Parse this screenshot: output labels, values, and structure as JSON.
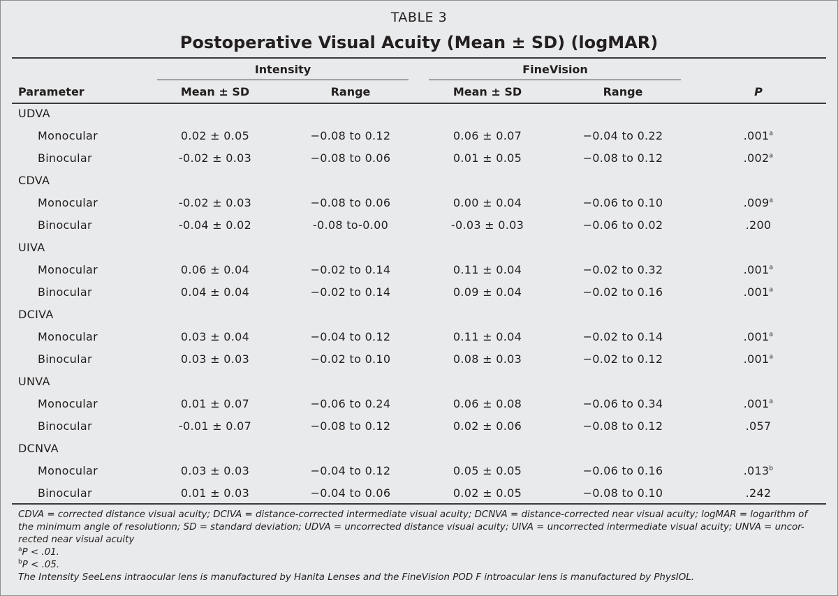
{
  "table": {
    "label": "TABLE 3",
    "title": "Postoperative Visual Acuity (Mean ± SD) (logMAR)",
    "group_headers": {
      "intensity": "Intensity",
      "finevision": "FineVision"
    },
    "column_headers": {
      "parameter": "Parameter",
      "intensity_mean": "Mean ± SD",
      "intensity_range": "Range",
      "finevision_mean": "Mean ± SD",
      "finevision_range": "Range",
      "p": "P"
    },
    "rows": [
      {
        "type": "section",
        "label": "UDVA"
      },
      {
        "type": "data",
        "label": "Monocular",
        "i_mean": "0.02 ± 0.05",
        "i_range": "−0.08 to 0.12",
        "f_mean": "0.06 ± 0.07",
        "f_range": "−0.04 to 0.22",
        "p": ".001",
        "p_sup": "a"
      },
      {
        "type": "data",
        "label": "Binocular",
        "i_mean": "-0.02 ± 0.03",
        "i_range": "−0.08 to 0.06",
        "f_mean": "0.01 ± 0.05",
        "f_range": "−0.08 to 0.12",
        "p": ".002",
        "p_sup": "a"
      },
      {
        "type": "section",
        "label": "CDVA"
      },
      {
        "type": "data",
        "label": "Monocular",
        "i_mean": "-0.02 ± 0.03",
        "i_range": "−0.08 to 0.06",
        "f_mean": "0.00 ± 0.04",
        "f_range": "−0.06 to 0.10",
        "p": ".009",
        "p_sup": "a"
      },
      {
        "type": "data",
        "label": "Binocular",
        "i_mean": "-0.04 ± 0.02",
        "i_range": "-0.08 to-0.00",
        "f_mean": "-0.03 ± 0.03",
        "f_range": "−0.06 to 0.02",
        "p": ".200",
        "p_sup": ""
      },
      {
        "type": "section",
        "label": "UIVA"
      },
      {
        "type": "data",
        "label": "Monocular",
        "i_mean": "0.06 ± 0.04",
        "i_range": "−0.02 to 0.14",
        "f_mean": "0.11 ± 0.04",
        "f_range": "−0.02 to 0.32",
        "p": ".001",
        "p_sup": "a"
      },
      {
        "type": "data",
        "label": "Binocular",
        "i_mean": "0.04 ± 0.04",
        "i_range": "−0.02 to 0.14",
        "f_mean": "0.09 ± 0.04",
        "f_range": "−0.02 to 0.16",
        "p": ".001",
        "p_sup": "a"
      },
      {
        "type": "section",
        "label": "DCIVA"
      },
      {
        "type": "data",
        "label": "Monocular",
        "i_mean": "0.03 ± 0.04",
        "i_range": "−0.04 to 0.12",
        "f_mean": "0.11 ± 0.04",
        "f_range": "−0.02 to 0.14",
        "p": ".001",
        "p_sup": "a"
      },
      {
        "type": "data",
        "label": "Binocular",
        "i_mean": "0.03 ± 0.03",
        "i_range": "−0.02 to 0.10",
        "f_mean": "0.08 ± 0.03",
        "f_range": "−0.02 to 0.12",
        "p": ".001",
        "p_sup": "a"
      },
      {
        "type": "section",
        "label": "UNVA"
      },
      {
        "type": "data",
        "label": "Monocular",
        "i_mean": "0.01 ± 0.07",
        "i_range": "−0.06 to 0.24",
        "f_mean": "0.06 ± 0.08",
        "f_range": "−0.06 to 0.34",
        "p": ".001",
        "p_sup": "a"
      },
      {
        "type": "data",
        "label": "Binocular",
        "i_mean": "-0.01 ± 0.07",
        "i_range": "−0.08 to 0.12",
        "f_mean": "0.02 ± 0.06",
        "f_range": "−0.08 to 0.12",
        "p": ".057",
        "p_sup": ""
      },
      {
        "type": "section",
        "label": "DCNVA"
      },
      {
        "type": "data",
        "label": "Monocular",
        "i_mean": "0.03 ± 0.03",
        "i_range": "−0.04 to 0.12",
        "f_mean": "0.05 ± 0.05",
        "f_range": "−0.06 to 0.16",
        "p": ".013",
        "p_sup": "b"
      },
      {
        "type": "data",
        "label": "Binocular",
        "i_mean": "0.01 ± 0.03",
        "i_range": "−0.04 to 0.06",
        "f_mean": "0.02 ± 0.05",
        "f_range": "−0.08 to 0.10",
        "p": ".242",
        "p_sup": ""
      }
    ],
    "footnotes": {
      "abbreviations": "CDVA = corrected distance visual acuity; DCIVA = distance-corrected intermediate visual acuity; DCNVA = distance-corrected near visual acuity; logMAR = logarithm of the minimum angle of resolutionn; SD = standard deviation; UDVA = uncorrected distance visual acuity; UIVA = uncorrected intermediate visual acuity; UNVA = uncor-rected near visual acuity",
      "a_mark": "a",
      "a_text": "P < .01.",
      "b_mark": "b",
      "b_text": "P < .05.",
      "manufacturer": "The Intensity SeeLens intraocular lens is manufactured by Hanita Lenses and the FineVision POD F introacular lens is manufactured by PhysIOL."
    }
  }
}
